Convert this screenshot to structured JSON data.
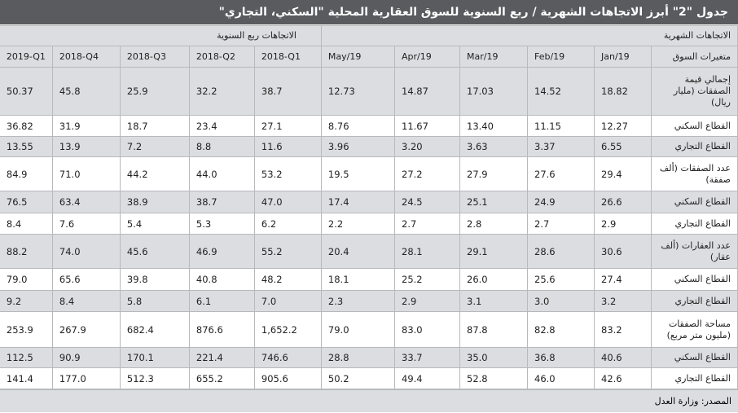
{
  "header": {
    "title": "جدول \"2\" أبرز الاتجاهات الشهرية / ربع السنوية للسوق العقارية المحلية \"السكني، التجاري\""
  },
  "table": {
    "groups": {
      "monthly": "الاتجاهات الشهرية",
      "quarterly": "الاتجاهات ربع السنوية"
    },
    "columns": [
      "متغيرات السوق",
      "Jan/19",
      "Feb/19",
      "Mar/19",
      "Apr/19",
      "May/19",
      "2018-Q1",
      "2018-Q2",
      "2018-Q3",
      "2018-Q4",
      "2019-Q1"
    ],
    "rows": [
      [
        "إجمالي قيمة الصفقات (مليار ريال)",
        "18.82",
        "14.52",
        "17.03",
        "14.87",
        "12.73",
        "38.7",
        "32.2",
        "25.9",
        "45.8",
        "50.37"
      ],
      [
        "القطاع السكني",
        "12.27",
        "11.15",
        "13.40",
        "11.67",
        "8.76",
        "27.1",
        "23.4",
        "18.7",
        "31.9",
        "36.82"
      ],
      [
        "القطاع التجاري",
        "6.55",
        "3.37",
        "3.63",
        "3.20",
        "3.96",
        "11.6",
        "8.8",
        "7.2",
        "13.9",
        "13.55"
      ],
      [
        "عدد الصفقات (ألف صفقة)",
        "29.4",
        "27.6",
        "27.9",
        "27.2",
        "19.5",
        "53.2",
        "44.0",
        "44.2",
        "71.0",
        "84.9"
      ],
      [
        "القطاع السكني",
        "26.6",
        "24.9",
        "25.1",
        "24.5",
        "17.4",
        "47.0",
        "38.7",
        "38.9",
        "63.4",
        "76.5"
      ],
      [
        "القطاع التجاري",
        "2.9",
        "2.7",
        "2.8",
        "2.7",
        "2.2",
        "6.2",
        "5.3",
        "5.4",
        "7.6",
        "8.4"
      ],
      [
        "عدد العقارات (ألف عقار)",
        "30.6",
        "28.6",
        "29.1",
        "28.1",
        "20.4",
        "55.2",
        "46.9",
        "45.6",
        "74.0",
        "88.2"
      ],
      [
        "القطاع السكني",
        "27.4",
        "25.6",
        "26.0",
        "25.2",
        "18.1",
        "48.2",
        "40.8",
        "39.8",
        "65.6",
        "79.0"
      ],
      [
        "القطاع التجاري",
        "3.2",
        "3.0",
        "3.1",
        "2.9",
        "2.3",
        "7.0",
        "6.1",
        "5.8",
        "8.4",
        "9.2"
      ],
      [
        "مساحة الصفقات (مليون متر مربع)",
        "83.2",
        "82.8",
        "87.8",
        "83.0",
        "79.0",
        "1,652.2",
        "876.6",
        "682.4",
        "267.9",
        "253.9"
      ],
      [
        "القطاع السكني",
        "40.6",
        "36.8",
        "35.0",
        "33.7",
        "28.8",
        "746.6",
        "221.4",
        "170.1",
        "90.9",
        "112.5"
      ],
      [
        "القطاع التجاري",
        "42.6",
        "46.0",
        "52.8",
        "49.4",
        "50.2",
        "905.6",
        "655.2",
        "512.3",
        "177.0",
        "141.4"
      ]
    ]
  },
  "footer": {
    "source": "المصدر: وزارة العدل"
  }
}
